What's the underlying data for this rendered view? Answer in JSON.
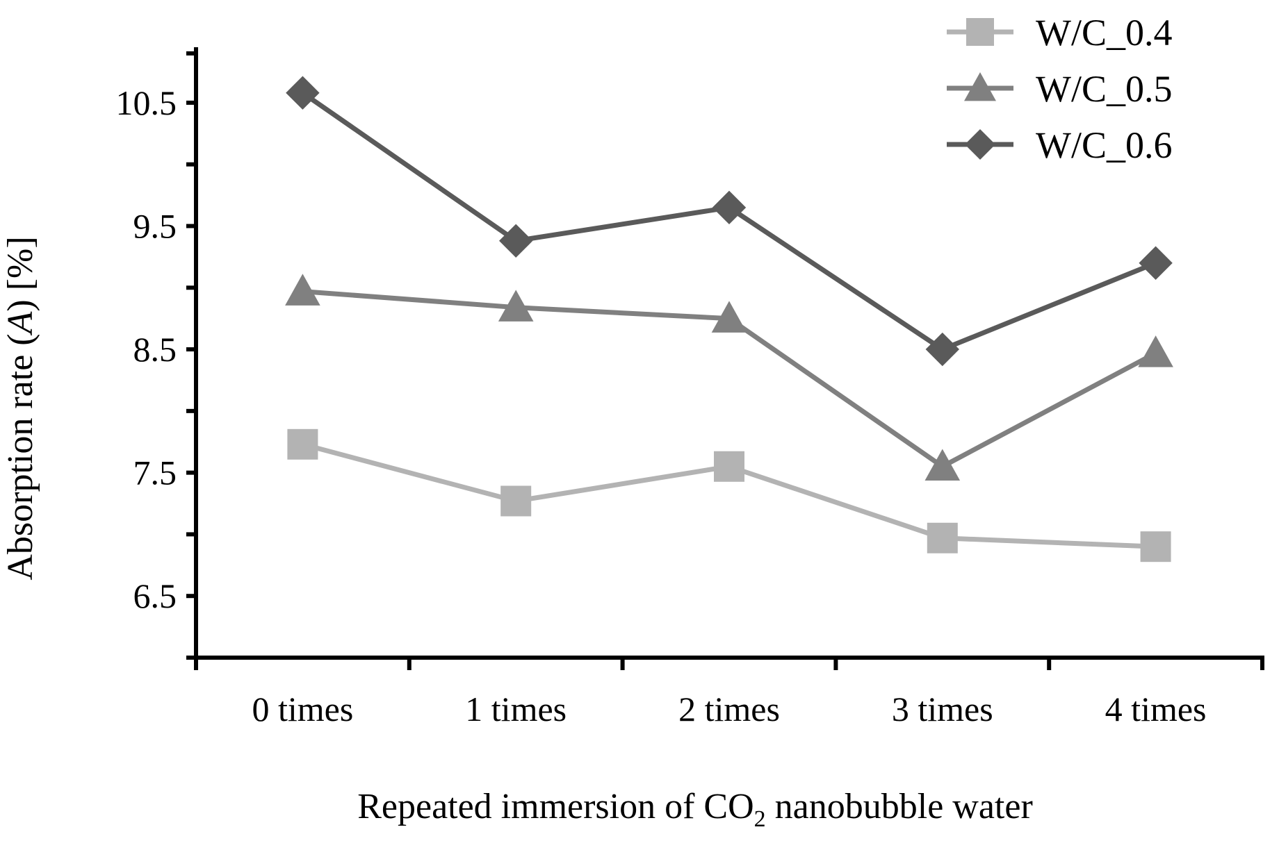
{
  "chart_data": {
    "type": "line",
    "xlabel": {
      "prefix": "Repeated immersion of CO",
      "subscript": "2",
      "suffix": " nanobubble water"
    },
    "ylabel": {
      "prefix": "Absorption rate (",
      "italic": "A",
      "suffix": ") [%]"
    },
    "categories": [
      "0 times",
      "1 times",
      "2 times",
      "3 times",
      "4 times"
    ],
    "ylim": [
      6.0,
      10.95
    ],
    "y_ticks": [
      6.5,
      7.5,
      8.5,
      9.5,
      10.5
    ],
    "y_tick_labels": [
      "6.5",
      "7.5",
      "8.5",
      "9.5",
      "10.5"
    ],
    "y_minor_ticks": [
      6.0,
      7.0,
      8.0,
      9.0,
      10.0,
      10.9
    ],
    "grid": false,
    "legend_position": "top-right",
    "series": [
      {
        "name": "W/C_0.4",
        "marker": "square",
        "color": "#b3b3b3",
        "values": [
          7.73,
          7.27,
          7.55,
          6.97,
          6.9
        ]
      },
      {
        "name": "W/C_0.5",
        "marker": "triangle",
        "color": "#808080",
        "values": [
          8.97,
          8.84,
          8.75,
          7.55,
          8.47
        ]
      },
      {
        "name": "W/C_0.6",
        "marker": "diamond",
        "color": "#5a5a5a",
        "values": [
          10.58,
          9.38,
          9.65,
          8.5,
          9.2
        ]
      }
    ]
  }
}
